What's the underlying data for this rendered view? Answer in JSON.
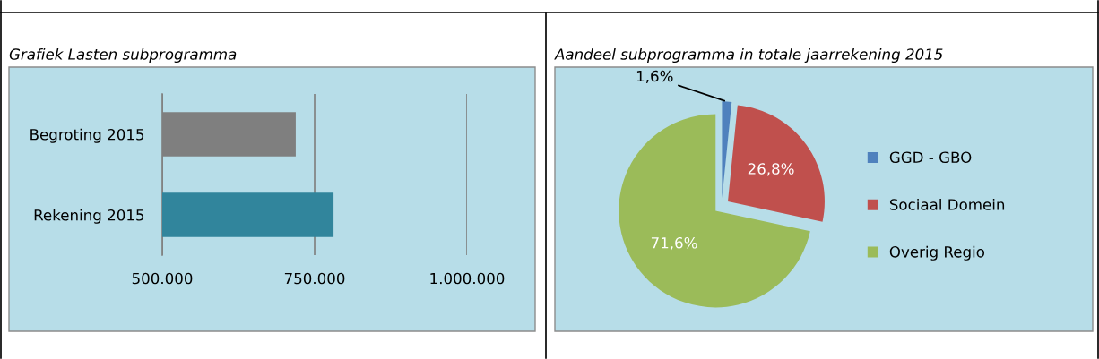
{
  "chart_data": [
    {
      "type": "bar",
      "title": "Grafiek Lasten subprogramma",
      "orientation": "horizontal",
      "categories": [
        "Begroting 2015",
        "Rekening 2015"
      ],
      "colors": [
        "#7f7f7f",
        "#31859c"
      ],
      "values": [
        719000,
        781000
      ],
      "xlim": [
        500000,
        1000000
      ],
      "xticks": [
        {
          "value": 500000,
          "label": "500.000"
        },
        {
          "value": 750000,
          "label": "750.000"
        },
        {
          "value": 1000000,
          "label": "1.000.000"
        }
      ],
      "grid": "x"
    },
    {
      "type": "pie",
      "title": "Aandeel subprogramma in totale jaarrekening 2015",
      "categories": [
        "GGD - GBO",
        "Sociaal Domein",
        "Overig Regio"
      ],
      "values": [
        1.6,
        26.8,
        71.6
      ],
      "colors": [
        "#4f81bd",
        "#c0504d",
        "#9bbb59"
      ],
      "value_labels": [
        "1,6%",
        "26,8%",
        "71,6%"
      ],
      "legend": "right"
    }
  ]
}
